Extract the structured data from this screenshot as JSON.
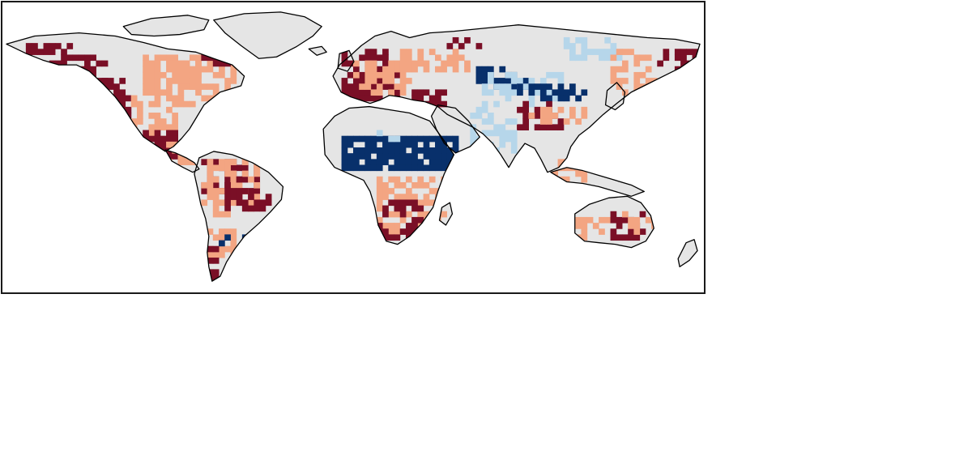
{
  "map": {
    "type": "choropleth-grid",
    "projection": "plate-carree",
    "extent": {
      "lon": [
        -180,
        180
      ],
      "lat": [
        -60,
        90
      ]
    },
    "colors": {
      "strong_positive": "#7a0f26",
      "positive": "#f3a582",
      "neutral": "#e5e5e5",
      "negative": "#b6d6ea",
      "strong_negative": "#08306b",
      "coastline": "#000000",
      "ocean": "#ffffff"
    }
  }
}
